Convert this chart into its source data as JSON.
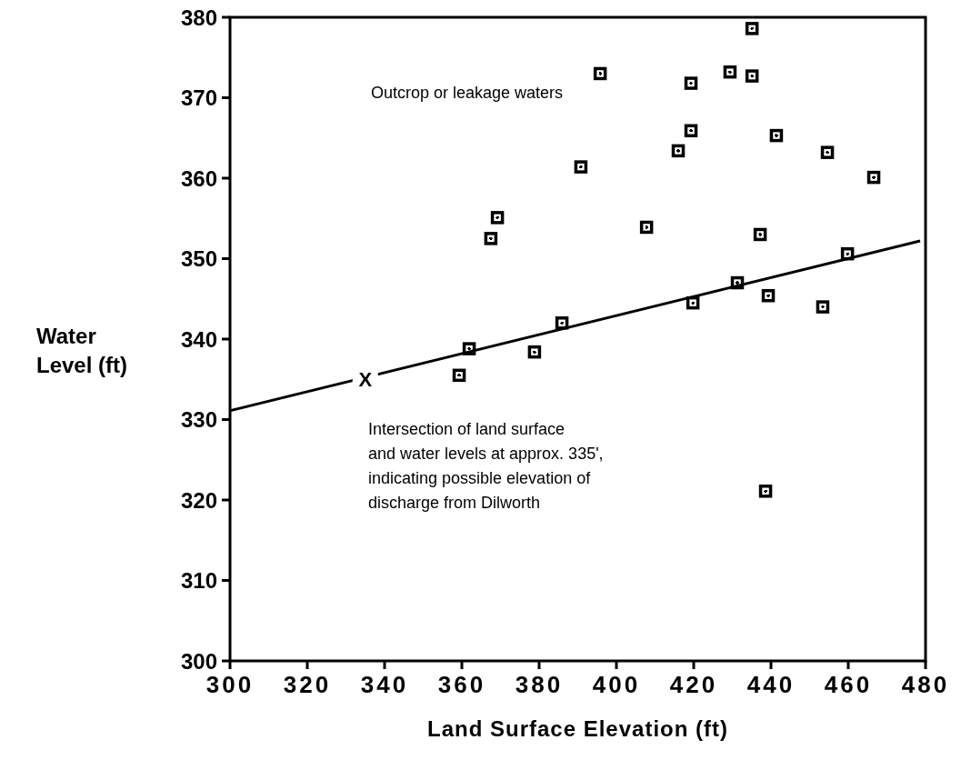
{
  "chart_data": {
    "type": "scatter",
    "xlabel": "Land Surface Elevation (ft)",
    "ylabel": "Water Level (ft)",
    "grid": false,
    "legend": false,
    "xlim": [
      300,
      480
    ],
    "xticks": [
      300,
      320,
      340,
      360,
      380,
      400,
      420,
      440,
      460,
      480
    ],
    "ylim": [
      300,
      380
    ],
    "yticks": [
      300,
      310,
      320,
      330,
      340,
      350,
      360,
      370,
      380
    ],
    "series": [
      {
        "type": "scatter",
        "marker": "square",
        "color": "#000000",
        "x": [
          359.3,
          361.9,
          367.5,
          369.2,
          378.8,
          385.9,
          390.8,
          395.8,
          407.8,
          416.0,
          419.3,
          419.3,
          419.8,
          429.4,
          431.3,
          435.1,
          435.1,
          437.2,
          439.3,
          441.4,
          438.6,
          453.4,
          454.6,
          459.8,
          466.6
        ],
        "values": [
          335.5,
          338.8,
          352.5,
          355.1,
          338.4,
          342.0,
          361.4,
          373.0,
          353.9,
          363.4,
          365.9,
          371.8,
          344.5,
          373.2,
          347.0,
          378.6,
          372.7,
          353.0,
          345.4,
          365.3,
          321.1,
          344.0,
          363.2,
          350.6,
          360.1
        ]
      },
      {
        "type": "line",
        "color": "#000000",
        "x": [
          300,
          478.6
        ],
        "values": [
          331.1,
          352.2
        ]
      }
    ],
    "annotations": [
      {
        "text": "X",
        "x": 335,
        "y": 335
      },
      "Outcrop or leakage waters",
      "Intersection of land surface\nand water levels at approx. 335',\nindicating possible elevation of\ndischarge from Dilworth"
    ]
  }
}
